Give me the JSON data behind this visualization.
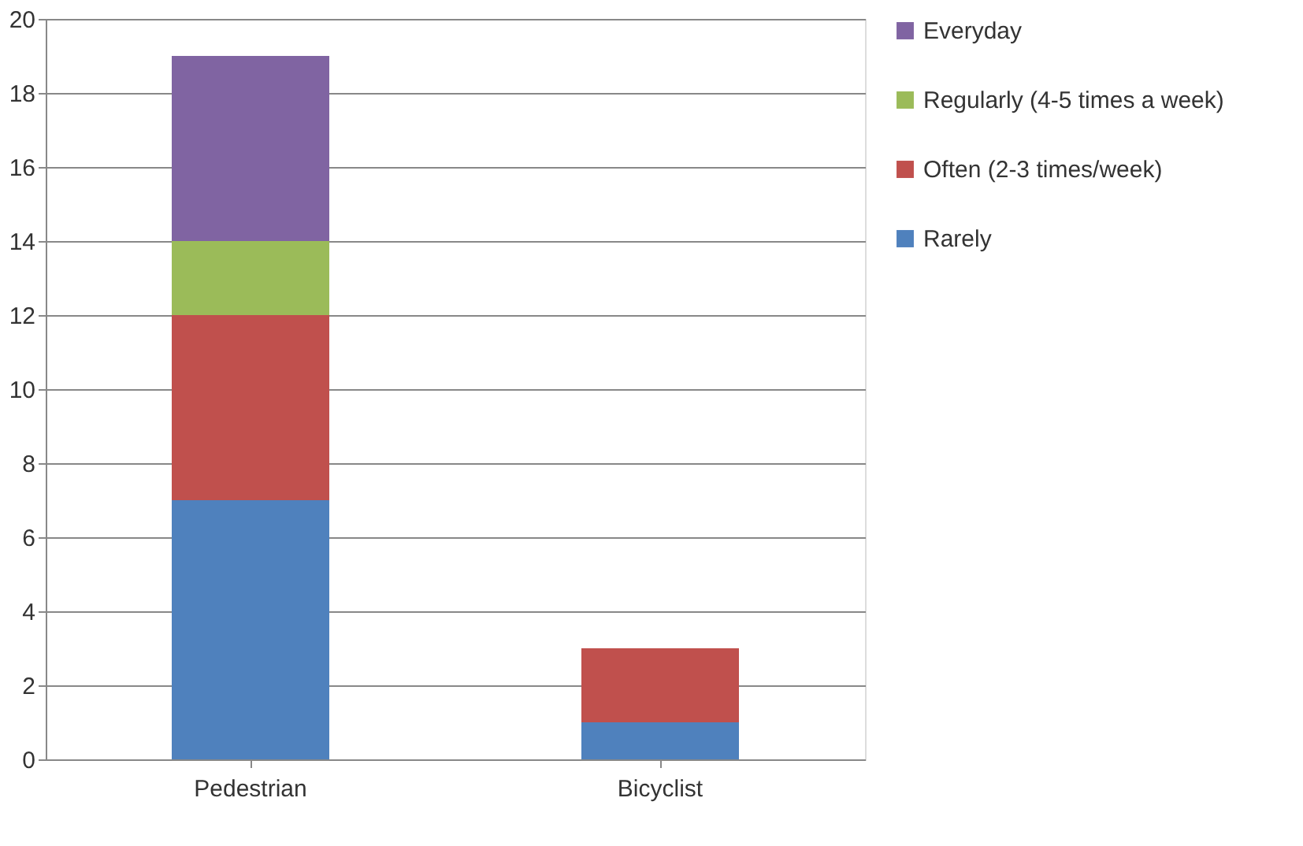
{
  "chart_data": {
    "type": "bar",
    "stacked": true,
    "categories": [
      "Pedestrian",
      "Bicyclist"
    ],
    "series": [
      {
        "name": "Rarely",
        "color": "#4f81bd",
        "values": [
          7,
          1
        ]
      },
      {
        "name": "Often (2-3 times/week)",
        "color": "#c0504d",
        "values": [
          5,
          2
        ]
      },
      {
        "name": "Regularly (4-5 times a week)",
        "color": "#9bbb59",
        "values": [
          2,
          0
        ]
      },
      {
        "name": "Everyday",
        "color": "#8064a2",
        "values": [
          5,
          0
        ]
      }
    ],
    "ylim": [
      0,
      20
    ],
    "yticks": [
      0,
      2,
      4,
      6,
      8,
      10,
      12,
      14,
      16,
      18,
      20
    ],
    "grid": "y",
    "legend": "right"
  }
}
